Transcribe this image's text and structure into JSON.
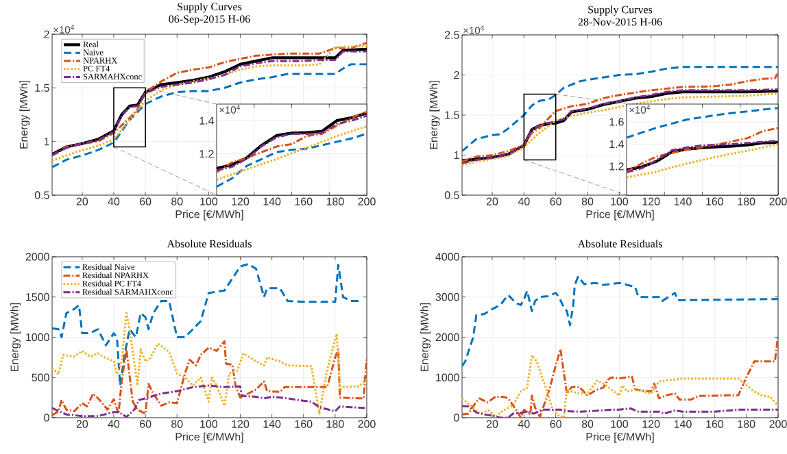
{
  "chart_data": [
    {
      "type": "line",
      "title": "Supply Curves",
      "subtitle": "06-Sep-2015 H-06",
      "xlabel": "Price [€/MWh]",
      "ylabel": "Energy [MWh]",
      "annotations": [
        "×10$^{4}$"
      ],
      "xlim": [
        1,
        200
      ],
      "ylim": [
        0.5,
        2
      ],
      "xticks": [
        20,
        40,
        60,
        80,
        100,
        120,
        140,
        160,
        180,
        200
      ],
      "yticks": [
        0.5,
        1,
        1.5,
        2
      ],
      "grid": true,
      "legend": "top left",
      "series": [
        {
          "name": "Real",
          "color": "#000000",
          "line_style": "solid",
          "x": [
            1,
            10,
            20,
            30,
            40,
            45,
            50,
            55,
            60,
            70,
            80,
            90,
            100,
            110,
            120,
            130,
            140,
            150,
            160,
            170,
            180,
            185,
            200
          ],
          "values": [
            0.88,
            0.95,
            0.98,
            1.02,
            1.1,
            1.25,
            1.33,
            1.34,
            1.46,
            1.53,
            1.55,
            1.57,
            1.6,
            1.65,
            1.72,
            1.75,
            1.78,
            1.78,
            1.78,
            1.78,
            1.78,
            1.85,
            1.86
          ]
        },
        {
          "name": "Naive",
          "color": "#0072bd",
          "line_style": "dashed",
          "x": [
            1,
            10,
            20,
            30,
            40,
            50,
            60,
            70,
            80,
            90,
            100,
            110,
            120,
            130,
            140,
            150,
            160,
            170,
            180,
            185,
            190,
            200
          ],
          "values": [
            0.76,
            0.83,
            0.87,
            0.92,
            0.99,
            1.2,
            1.35,
            1.42,
            1.46,
            1.47,
            1.47,
            1.5,
            1.55,
            1.58,
            1.6,
            1.63,
            1.63,
            1.63,
            1.63,
            1.68,
            1.72,
            1.72
          ]
        },
        {
          "name": "NPARHX",
          "color": "#d95319",
          "line_style": "dashdot",
          "x": [
            1,
            10,
            20,
            30,
            40,
            45,
            50,
            55,
            60,
            70,
            80,
            90,
            100,
            110,
            120,
            130,
            140,
            150,
            160,
            170,
            180,
            190,
            200
          ],
          "values": [
            0.87,
            0.95,
            0.98,
            1.0,
            1.08,
            1.15,
            1.22,
            1.3,
            1.46,
            1.56,
            1.64,
            1.67,
            1.69,
            1.74,
            1.77,
            1.8,
            1.81,
            1.82,
            1.82,
            1.82,
            1.87,
            1.87,
            1.92
          ]
        },
        {
          "name": "PC FT4",
          "color": "#edb120",
          "line_style": "dotted",
          "x": [
            1,
            10,
            20,
            30,
            40,
            50,
            60,
            70,
            80,
            90,
            100,
            110,
            120,
            130,
            140,
            150,
            160,
            170,
            175,
            180,
            200
          ],
          "values": [
            0.82,
            0.87,
            0.92,
            0.96,
            1.02,
            1.2,
            1.38,
            1.48,
            1.53,
            1.56,
            1.59,
            1.62,
            1.67,
            1.7,
            1.71,
            1.71,
            1.71,
            1.72,
            1.8,
            1.88,
            1.89
          ]
        },
        {
          "name": "SARMAHXconc",
          "color": "#7e2f8e",
          "line_style": "dashdot",
          "x": [
            1,
            10,
            20,
            30,
            40,
            45,
            50,
            55,
            60,
            70,
            80,
            90,
            100,
            110,
            120,
            130,
            140,
            150,
            160,
            170,
            180,
            185,
            200
          ],
          "values": [
            0.87,
            0.94,
            0.98,
            1.01,
            1.09,
            1.24,
            1.32,
            1.33,
            1.45,
            1.51,
            1.53,
            1.55,
            1.58,
            1.62,
            1.7,
            1.73,
            1.75,
            1.75,
            1.75,
            1.76,
            1.76,
            1.84,
            1.84
          ]
        }
      ]
    },
    {
      "type": "line",
      "annotations": [
        "×10$^{4}$"
      ],
      "categories": [
        null,
        null,
        null,
        null,
        null,
        null,
        null,
        null,
        null,
        null,
        null
      ],
      "ylim": [
        0.95,
        1.5
      ],
      "yticks": [
        1.2,
        1.4
      ],
      "grid": true,
      "series": [
        {
          "color": "#000000",
          "line_style": "solid",
          "values": [
            1.112,
            1.133,
            1.175,
            1.251,
            1.31,
            1.325,
            1.328,
            1.335,
            1.4,
            1.418,
            1.446
          ]
        },
        {
          "color": "#0072bd",
          "line_style": "dashed",
          "values": [
            1.001,
            1.05,
            1.126,
            1.168,
            1.21,
            1.224,
            1.231,
            1.251,
            1.272,
            1.293,
            1.321
          ]
        },
        {
          "color": "#d95319",
          "line_style": "dashdot",
          "values": [
            1.089,
            1.147,
            1.175,
            1.21,
            1.244,
            1.258,
            1.307,
            1.32,
            1.369,
            1.418,
            1.453
          ]
        },
        {
          "color": "#edb120",
          "line_style": "dotted",
          "values": [
            1.043,
            1.075,
            1.106,
            1.137,
            1.168,
            1.203,
            1.237,
            1.272,
            1.307,
            1.336,
            1.365
          ]
        },
        {
          "color": "#7e2f8e",
          "line_style": "dashdot",
          "values": [
            1.1,
            1.12,
            1.17,
            1.245,
            1.3,
            1.32,
            1.32,
            1.325,
            1.38,
            1.4,
            1.43
          ]
        }
      ]
    },
    {
      "type": "line",
      "title": "Supply Curves",
      "subtitle": "28-Nov-2015 H-06",
      "xlabel": "Price [€/MWh]",
      "ylabel": "Energy [MWh]",
      "annotations": [
        "×10$^{4}$"
      ],
      "xlim": [
        1,
        200
      ],
      "ylim": [
        0.5,
        2.5
      ],
      "xticks": [
        20,
        40,
        60,
        80,
        100,
        120,
        140,
        160,
        180,
        200
      ],
      "yticks": [
        0.5,
        1,
        1.5,
        2,
        2.5
      ],
      "grid": true,
      "series": [
        {
          "color": "#000000",
          "line_style": "solid",
          "x": [
            1,
            10,
            20,
            30,
            40,
            45,
            50,
            55,
            60,
            65,
            70,
            80,
            90,
            100,
            110,
            120,
            130,
            140,
            180,
            200
          ],
          "values": [
            0.93,
            0.95,
            0.97,
            1.01,
            1.12,
            1.32,
            1.37,
            1.39,
            1.4,
            1.43,
            1.54,
            1.57,
            1.63,
            1.67,
            1.71,
            1.73,
            1.77,
            1.79,
            1.79,
            1.8
          ]
        },
        {
          "color": "#0072bd",
          "line_style": "dashed",
          "x": [
            1,
            10,
            20,
            25,
            30,
            40,
            45,
            50,
            55,
            60,
            65,
            70,
            75,
            80,
            90,
            100,
            110,
            120,
            130,
            140,
            200
          ],
          "values": [
            1.05,
            1.2,
            1.25,
            1.26,
            1.33,
            1.5,
            1.62,
            1.68,
            1.69,
            1.75,
            1.84,
            1.88,
            1.92,
            1.94,
            1.97,
            2.0,
            2.01,
            2.04,
            2.08,
            2.1,
            2.1
          ]
        },
        {
          "color": "#d95319",
          "line_style": "dashdot",
          "x": [
            1,
            10,
            20,
            30,
            40,
            45,
            50,
            55,
            60,
            70,
            80,
            90,
            100,
            110,
            120,
            130,
            140,
            160,
            170,
            180,
            190,
            198,
            200
          ],
          "values": [
            0.92,
            0.98,
            1.0,
            1.05,
            1.13,
            1.28,
            1.34,
            1.45,
            1.55,
            1.61,
            1.64,
            1.71,
            1.75,
            1.78,
            1.81,
            1.83,
            1.85,
            1.86,
            1.88,
            1.92,
            1.95,
            1.96,
            2.02
          ]
        },
        {
          "color": "#edb120",
          "line_style": "dotted",
          "x": [
            1,
            10,
            20,
            30,
            40,
            50,
            60,
            70,
            80,
            90,
            100,
            110,
            120,
            130,
            140,
            160,
            180,
            200
          ],
          "values": [
            0.87,
            0.92,
            0.95,
            0.99,
            1.1,
            1.28,
            1.43,
            1.49,
            1.53,
            1.56,
            1.6,
            1.64,
            1.67,
            1.7,
            1.72,
            1.73,
            1.74,
            1.77
          ]
        },
        {
          "color": "#7e2f8e",
          "line_style": "dashdot",
          "x": [
            1,
            10,
            20,
            30,
            40,
            45,
            50,
            55,
            60,
            65,
            70,
            80,
            90,
            100,
            110,
            120,
            130,
            140,
            180,
            200
          ],
          "values": [
            0.9,
            0.94,
            0.97,
            1.01,
            1.12,
            1.32,
            1.37,
            1.4,
            1.42,
            1.45,
            1.55,
            1.58,
            1.64,
            1.67,
            1.72,
            1.75,
            1.79,
            1.81,
            1.81,
            1.82
          ]
        }
      ]
    },
    {
      "type": "line",
      "annotations": [
        "×10$^{4}$"
      ],
      "categories": [
        null,
        null,
        null,
        null,
        null,
        null,
        null,
        null,
        null,
        null,
        null
      ],
      "ylim": [
        0.94,
        1.76
      ],
      "yticks": [
        1.2,
        1.4,
        1.6
      ],
      "grid": true,
      "series": [
        {
          "color": "#000000",
          "line_style": "solid",
          "values": [
            1.167,
            1.194,
            1.246,
            1.33,
            1.355,
            1.367,
            1.375,
            1.381,
            1.392,
            1.41,
            1.415
          ]
        },
        {
          "color": "#0072bd",
          "line_style": "dashed",
          "values": [
            1.458,
            1.503,
            1.548,
            1.585,
            1.621,
            1.642,
            1.663,
            1.68,
            1.694,
            1.71,
            1.725
          ]
        },
        {
          "color": "#d95319",
          "line_style": "dashdot",
          "values": [
            1.152,
            1.225,
            1.288,
            1.319,
            1.35,
            1.373,
            1.396,
            1.425,
            1.454,
            1.517,
            1.544
          ]
        },
        {
          "color": "#edb120",
          "line_style": "dotted",
          "values": [
            1.1,
            1.126,
            1.152,
            1.19,
            1.225,
            1.257,
            1.288,
            1.314,
            1.34,
            1.37,
            1.4
          ]
        },
        {
          "color": "#7e2f8e",
          "line_style": "dashdot",
          "values": [
            1.146,
            1.183,
            1.256,
            1.345,
            1.37,
            1.388,
            1.395,
            1.4,
            1.41,
            1.42,
            1.431
          ]
        }
      ]
    },
    {
      "type": "line",
      "title": "Absolute Residuals",
      "xlabel": "Price [€/MWh]",
      "ylabel": "Energy [MWh]",
      "xlim": [
        1,
        200
      ],
      "ylim": [
        0,
        2000
      ],
      "xticks": [
        20,
        40,
        60,
        80,
        100,
        120,
        140,
        160,
        180,
        200
      ],
      "yticks": [
        0,
        500,
        1000,
        1500,
        2000
      ],
      "grid": true,
      "legend": "top left",
      "series": [
        {
          "name": "Residual Naive",
          "color": "#0072bd",
          "line_style": "dashed",
          "x": [
            1,
            5,
            7,
            10,
            15,
            18,
            20,
            25,
            30,
            35,
            40,
            42,
            44,
            47,
            50,
            54,
            57,
            60,
            62,
            65,
            70,
            75,
            80,
            85,
            90,
            95,
            100,
            110,
            115,
            120,
            125,
            130,
            135,
            137,
            145,
            150,
            160,
            180,
            182,
            185,
            190,
            195
          ],
          "values": [
            1110,
            1100,
            1000,
            1300,
            1350,
            1400,
            1050,
            1050,
            1100,
            900,
            1050,
            1000,
            400,
            800,
            1100,
            1000,
            1300,
            1250,
            1100,
            1300,
            1450,
            1450,
            1000,
            1000,
            1100,
            1200,
            1550,
            1580,
            1730,
            1880,
            1910,
            1850,
            1500,
            1610,
            1610,
            1450,
            1440,
            1440,
            1900,
            1500,
            1450,
            1450
          ]
        },
        {
          "name": "Residual NPARHX",
          "color": "#d95319",
          "line_style": "dashdot",
          "x": [
            1,
            5,
            7,
            10,
            15,
            20,
            23,
            27,
            32,
            36,
            40,
            43,
            45,
            48,
            52,
            55,
            60,
            62,
            65,
            70,
            75,
            80,
            85,
            88,
            92,
            95,
            100,
            105,
            110,
            111,
            115,
            117,
            120,
            125,
            130,
            135,
            137,
            145,
            148,
            175,
            180,
            182,
            183,
            195,
            198,
            200
          ],
          "values": [
            30,
            80,
            220,
            100,
            80,
            180,
            140,
            300,
            200,
            100,
            230,
            50,
            450,
            850,
            200,
            100,
            50,
            420,
            300,
            150,
            190,
            180,
            550,
            720,
            650,
            780,
            870,
            830,
            950,
            670,
            660,
            400,
            250,
            300,
            350,
            450,
            330,
            320,
            380,
            380,
            750,
            850,
            250,
            240,
            240,
            750
          ]
        },
        {
          "name": "Residual PC FT4",
          "color": "#edb120",
          "line_style": "dotted",
          "x": [
            1,
            5,
            8,
            15,
            20,
            25,
            30,
            35,
            40,
            42,
            45,
            48,
            50,
            55,
            57,
            60,
            63,
            68,
            75,
            80,
            85,
            90,
            95,
            100,
            102,
            105,
            110,
            113,
            118,
            122,
            130,
            135,
            137,
            145,
            150,
            165,
            170,
            175,
            181,
            183,
            185,
            195,
            200
          ],
          "values": [
            620,
            540,
            780,
            760,
            830,
            760,
            800,
            740,
            700,
            540,
            700,
            1300,
            1100,
            400,
            850,
            700,
            740,
            920,
            820,
            550,
            500,
            400,
            500,
            200,
            500,
            400,
            150,
            550,
            580,
            800,
            700,
            650,
            750,
            700,
            650,
            640,
            50,
            600,
            1040,
            340,
            380,
            390,
            480
          ]
        },
        {
          "name": "Residual SARMAHXconc",
          "color": "#7e2f8e",
          "line_style": "dashdot",
          "x": [
            1,
            10,
            20,
            30,
            40,
            43,
            48,
            53,
            56,
            60,
            70,
            80,
            90,
            100,
            110,
            120,
            121,
            130,
            135,
            140,
            150,
            160,
            165,
            170,
            180,
            183,
            190,
            200
          ],
          "values": [
            120,
            40,
            20,
            20,
            70,
            70,
            10,
            100,
            220,
            240,
            300,
            330,
            380,
            400,
            380,
            390,
            270,
            260,
            240,
            260,
            240,
            210,
            200,
            130,
            80,
            140,
            130,
            120
          ]
        }
      ]
    },
    {
      "type": "line",
      "title": "Absolute Residuals",
      "xlabel": "Price [€/MWh]",
      "ylabel": "Energy [MWh]",
      "xlim": [
        1,
        200
      ],
      "ylim": [
        0,
        4000
      ],
      "xticks": [
        20,
        40,
        60,
        80,
        100,
        120,
        140,
        160,
        180,
        200
      ],
      "yticks": [
        0,
        1000,
        2000,
        3000,
        4000
      ],
      "grid": true,
      "series": [
        {
          "color": "#0072bd",
          "line_style": "dashed",
          "x": [
            1,
            3,
            8,
            10,
            15,
            20,
            25,
            30,
            35,
            38,
            40,
            42,
            45,
            47,
            50,
            55,
            60,
            62,
            65,
            67,
            69,
            71,
            72,
            74,
            78,
            85,
            90,
            100,
            110,
            112,
            125,
            127,
            135,
            137,
            200
          ],
          "values": [
            1280,
            1400,
            2000,
            2550,
            2580,
            2700,
            2800,
            3050,
            2850,
            2800,
            2950,
            3150,
            2650,
            2900,
            3000,
            3020,
            3100,
            3000,
            2750,
            2650,
            2300,
            2800,
            3300,
            3500,
            3320,
            3350,
            3300,
            3350,
            3250,
            3000,
            3000,
            2900,
            3100,
            2920,
            2950
          ]
        },
        {
          "color": "#d95319",
          "line_style": "dashdot",
          "x": [
            1,
            5,
            10,
            12,
            17,
            22,
            27,
            30,
            35,
            38,
            40,
            44,
            45,
            47,
            50,
            56,
            60,
            63,
            65,
            67,
            70,
            75,
            80,
            85,
            90,
            93,
            95,
            100,
            108,
            110,
            120,
            122,
            125,
            130,
            135,
            138,
            145,
            150,
            175,
            180,
            185,
            198,
            200
          ],
          "values": [
            80,
            100,
            400,
            480,
            380,
            520,
            520,
            480,
            200,
            0,
            200,
            80,
            550,
            250,
            20,
            700,
            1300,
            1700,
            1150,
            600,
            760,
            760,
            550,
            680,
            750,
            950,
            1000,
            980,
            1020,
            700,
            650,
            850,
            480,
            560,
            600,
            450,
            450,
            540,
            560,
            1000,
            1400,
            1400,
            2050
          ]
        },
        {
          "color": "#edb120",
          "line_style": "dotted",
          "x": [
            1,
            8,
            12,
            18,
            22,
            27,
            33,
            38,
            42,
            45,
            48,
            52,
            55,
            58,
            62,
            65,
            67,
            70,
            75,
            80,
            86,
            90,
            95,
            100,
            102,
            105,
            110,
            115,
            120,
            125,
            130,
            135,
            138,
            175,
            185,
            190,
            195,
            200
          ],
          "values": [
            480,
            250,
            100,
            180,
            20,
            180,
            300,
            650,
            750,
            1550,
            1400,
            950,
            600,
            200,
            50,
            0,
            700,
            650,
            600,
            600,
            920,
            850,
            700,
            550,
            800,
            650,
            700,
            650,
            600,
            900,
            930,
            950,
            970,
            970,
            650,
            550,
            520,
            300
          ]
        },
        {
          "color": "#7e2f8e",
          "line_style": "dashdot",
          "x": [
            1,
            5,
            10,
            15,
            20,
            25,
            30,
            33,
            38,
            42,
            46,
            52,
            58,
            63,
            67,
            75,
            85,
            95,
            100,
            107,
            112,
            125,
            128,
            135,
            140,
            160,
            175,
            200
          ],
          "values": [
            290,
            280,
            130,
            80,
            50,
            0,
            0,
            100,
            120,
            150,
            100,
            200,
            200,
            200,
            160,
            150,
            170,
            200,
            200,
            230,
            150,
            150,
            100,
            180,
            150,
            150,
            200,
            200
          ]
        }
      ]
    }
  ]
}
